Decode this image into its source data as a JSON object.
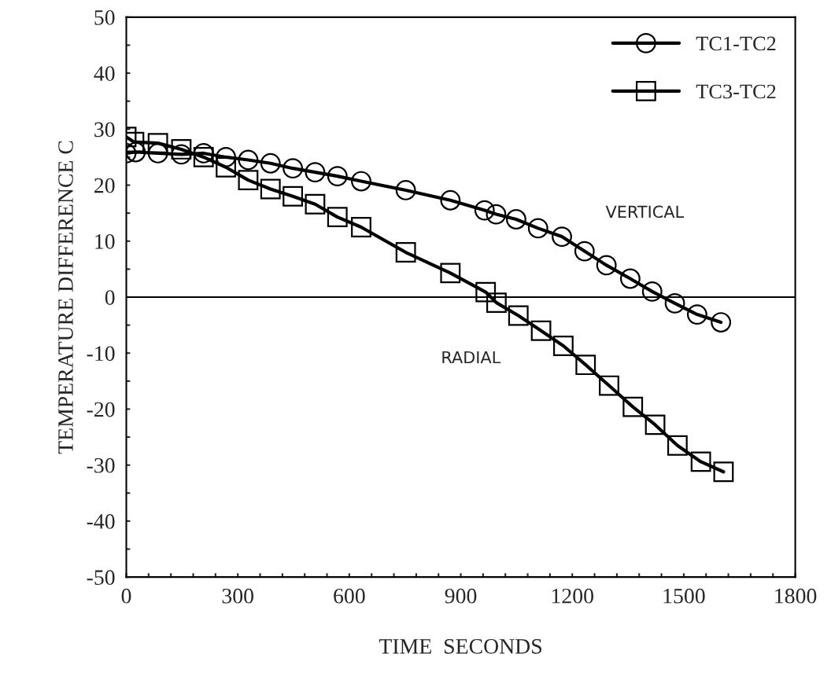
{
  "chart_data": {
    "type": "line",
    "xlabel": "TIME  SECONDS",
    "ylabel": "TEMPERATURE DIFFERENCE C",
    "xlim": [
      0,
      1800
    ],
    "ylim": [
      -50,
      50
    ],
    "xticks": [
      0,
      {
        "value": 60,
        "label": null
      },
      {
        "value": 120,
        "label": null
      },
      {
        "value": 180,
        "label": null
      },
      {
        "value": 240,
        "label": null
      },
      300,
      {
        "value": 360,
        "label": null
      },
      {
        "value": 420,
        "label": null
      },
      {
        "value": 480,
        "label": null
      },
      {
        "value": 540,
        "label": null
      },
      600,
      {
        "value": 660,
        "label": null
      },
      {
        "value": 720,
        "label": null
      },
      {
        "value": 780,
        "label": null
      },
      {
        "value": 840,
        "label": null
      },
      900,
      {
        "value": 960,
        "label": null
      },
      {
        "value": 1020,
        "label": null
      },
      {
        "value": 1080,
        "label": null
      },
      {
        "value": 1140,
        "label": null
      },
      1200,
      {
        "value": 1260,
        "label": null
      },
      {
        "value": 1320,
        "label": null
      },
      {
        "value": 1380,
        "label": null
      },
      {
        "value": 1440,
        "label": null
      },
      1500,
      {
        "value": 1560,
        "label": null
      },
      {
        "value": 1620,
        "label": null
      },
      {
        "value": 1680,
        "label": null
      },
      {
        "value": 1740,
        "label": null
      },
      1800
    ],
    "yticks": [
      -50,
      {
        "value": -45,
        "label": null
      },
      -40,
      {
        "value": -35,
        "label": null
      },
      -30,
      {
        "value": -25,
        "label": null
      },
      -20,
      {
        "value": -15,
        "label": null
      },
      -10,
      {
        "value": -5,
        "label": null
      },
      0,
      {
        "value": 5,
        "label": null
      },
      10,
      {
        "value": 15,
        "label": null
      },
      20,
      {
        "value": 25,
        "label": null
      },
      30,
      {
        "value": 35,
        "label": null
      },
      40,
      {
        "value": 45,
        "label": null
      },
      50
    ],
    "grid": false,
    "legend": "top right",
    "line_style": "solid",
    "series": [
      {
        "name": "TC1-TC2",
        "color": "#000000",
        "marker": "circle",
        "x": [
          0,
          25,
          85,
          148,
          208,
          268,
          328,
          388,
          448,
          508,
          568,
          632,
          752,
          872,
          964,
          995,
          1049,
          1108,
          1172,
          1233,
          1292,
          1356,
          1415,
          1476,
          1536,
          1600
        ],
        "values": [
          25.7,
          25.9,
          25.7,
          25.5,
          25.7,
          25.0,
          24.5,
          23.9,
          23.0,
          22.3,
          21.6,
          20.7,
          19.1,
          17.3,
          15.5,
          14.8,
          13.9,
          12.3,
          10.8,
          8.2,
          5.7,
          3.3,
          1.0,
          -1.1,
          -3.1,
          -4.5
        ]
      },
      {
        "name": "TC3-TC2",
        "color": "#000000",
        "marker": "square",
        "x": [
          0,
          21,
          85,
          148,
          208,
          268,
          328,
          388,
          448,
          508,
          568,
          632,
          752,
          872,
          967,
          996,
          1055,
          1116,
          1176,
          1236,
          1299,
          1363,
          1423,
          1483,
          1546,
          1607
        ],
        "values": [
          28.6,
          27.7,
          27.5,
          26.4,
          25.0,
          23.2,
          20.9,
          19.3,
          18.0,
          16.6,
          14.3,
          12.5,
          8.0,
          4.3,
          0.9,
          -1.0,
          -3.3,
          -6.0,
          -8.7,
          -12.1,
          -15.8,
          -19.6,
          -22.8,
          -26.5,
          -29.4,
          -31.2
        ]
      }
    ],
    "ref_lines": [
      {
        "axis": "y",
        "value": 0,
        "color": "#000000",
        "line_style": "solid"
      }
    ],
    "annotations": [
      "VERTICAL",
      "RADIAL"
    ]
  }
}
